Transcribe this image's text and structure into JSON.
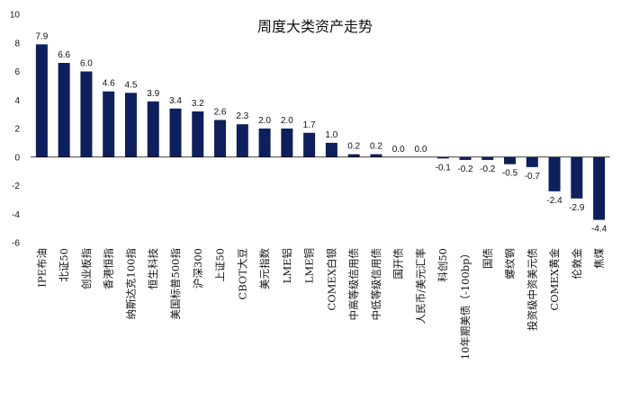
{
  "chart_data": {
    "type": "bar",
    "title": "周度大类资产走势",
    "xlabel": "",
    "ylabel": "",
    "ylim": [
      -6,
      10
    ],
    "yticks": [
      10,
      8,
      6,
      4,
      2,
      0,
      -2,
      -4,
      -6
    ],
    "grid": false,
    "legend": "none",
    "bar_color": "#0d1f5c",
    "categories": [
      "IPE布油",
      "北证50",
      "创业板指",
      "香港恒指",
      "纳斯达克100指",
      "恒生科技",
      "美国标普500指",
      "沪深300",
      "上证50",
      "CBOT大豆",
      "美元指数",
      "LME铝",
      "LME铜",
      "COMEX白银",
      "中高等级信用债",
      "中低等级信用债",
      "国开债",
      "人民币/美元汇率",
      "科创50",
      "10年期美债（-100bp）",
      "国债",
      "螺纹钢",
      "投资级中资美元债",
      "COMEX黄金",
      "伦敦金",
      "焦煤"
    ],
    "values": [
      7.9,
      6.6,
      6.0,
      4.6,
      4.5,
      3.9,
      3.4,
      3.2,
      2.6,
      2.3,
      2.0,
      2.0,
      1.7,
      1.0,
      0.2,
      0.2,
      0.0,
      0.0,
      -0.1,
      -0.2,
      -0.2,
      -0.5,
      -0.7,
      -2.4,
      -2.9,
      -4.4
    ],
    "data_labels": [
      "7.9",
      "6.6",
      "6.0",
      "4.6",
      "4.5",
      "3.9",
      "3.4",
      "3.2",
      "2.6",
      "2.3",
      "2.0",
      "2.0",
      "1.7",
      "1.0",
      "0.2",
      "0.2",
      "0.0",
      "0.0",
      "-0.1",
      "-0.2",
      "-0.2",
      "-0.5",
      "-0.7",
      "-2.4",
      "-2.9",
      "-4.4"
    ]
  }
}
